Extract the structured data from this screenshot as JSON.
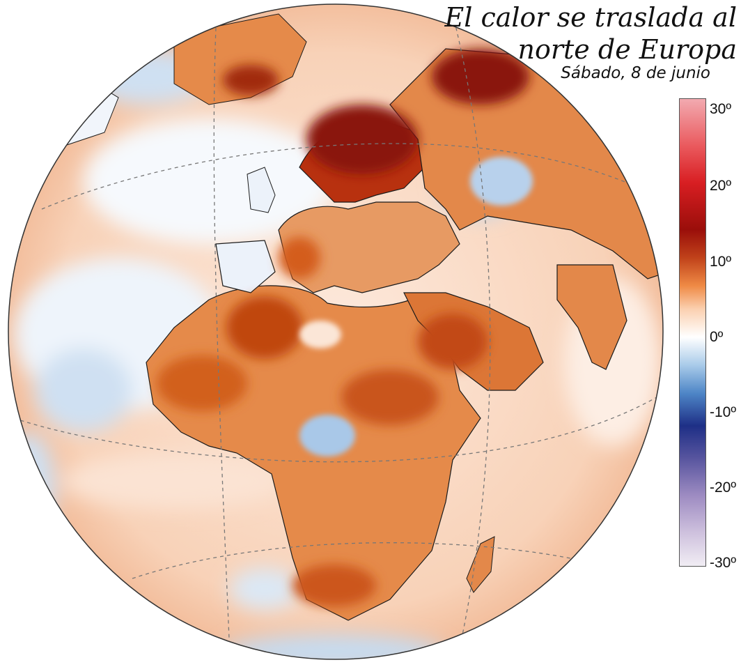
{
  "title_line1": "El calor se traslada al",
  "title_line2": "norte de Europa",
  "subtitle": "Sábado, 8 de junio",
  "legend": {
    "ticks": [
      "30º",
      "20º",
      "10º",
      "0º",
      "-10º",
      "-20º",
      "-30º"
    ],
    "range": [
      -30,
      30
    ],
    "colors": {
      "hot_max": "#f2aab0",
      "hot": "#d81e22",
      "warm_dark": "#9a0e0a",
      "warm": "#ef8a45",
      "neutral": "#ffffff",
      "cool": "#4e86c7",
      "cold": "#1e2f86",
      "cold_min": "#f1edf4"
    }
  },
  "map": {
    "projection": "orthographic",
    "ocean_color": "#f6d6c1",
    "anomaly_warm_color": "#d95f1c",
    "anomaly_strong_color": "#8a1408",
    "anomaly_cool_color": "#b8d4ec",
    "border_color": "#1a1a1a"
  }
}
